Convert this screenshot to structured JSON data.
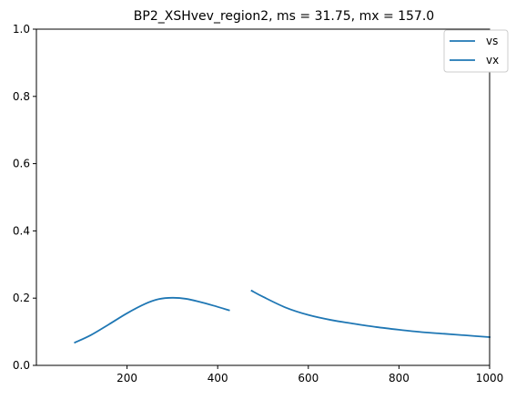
{
  "chart_data": {
    "type": "line",
    "title": "BP2_XSHvev_region2, ms = 31.75, mx = 157.0",
    "xlabel": "",
    "ylabel": "",
    "xlim": [
      0,
      1000
    ],
    "ylim": [
      0.0,
      1.0
    ],
    "x_ticks": [
      "200",
      "400",
      "600",
      "800",
      "1000"
    ],
    "y_ticks": [
      "0.0",
      "0.2",
      "0.4",
      "0.6",
      "0.8",
      "1.0"
    ],
    "grid": false,
    "legend_position": "top-right",
    "colors": {
      "series": "#1f77b4",
      "axes": "#000000"
    },
    "series": [
      {
        "name": "vs",
        "x": [
          85,
          120,
          160,
          200,
          240,
          270,
          300,
          330,
          360,
          390,
          425
        ],
        "y": [
          0.068,
          0.09,
          0.122,
          0.155,
          0.183,
          0.197,
          0.201,
          0.198,
          0.189,
          0.178,
          0.164
        ]
      },
      {
        "name": "vx",
        "x": [
          475,
          500,
          550,
          600,
          650,
          700,
          750,
          800,
          850,
          900,
          950,
          1000
        ],
        "y": [
          0.222,
          0.204,
          0.172,
          0.15,
          0.135,
          0.124,
          0.114,
          0.106,
          0.099,
          0.094,
          0.089,
          0.084
        ]
      }
    ]
  }
}
